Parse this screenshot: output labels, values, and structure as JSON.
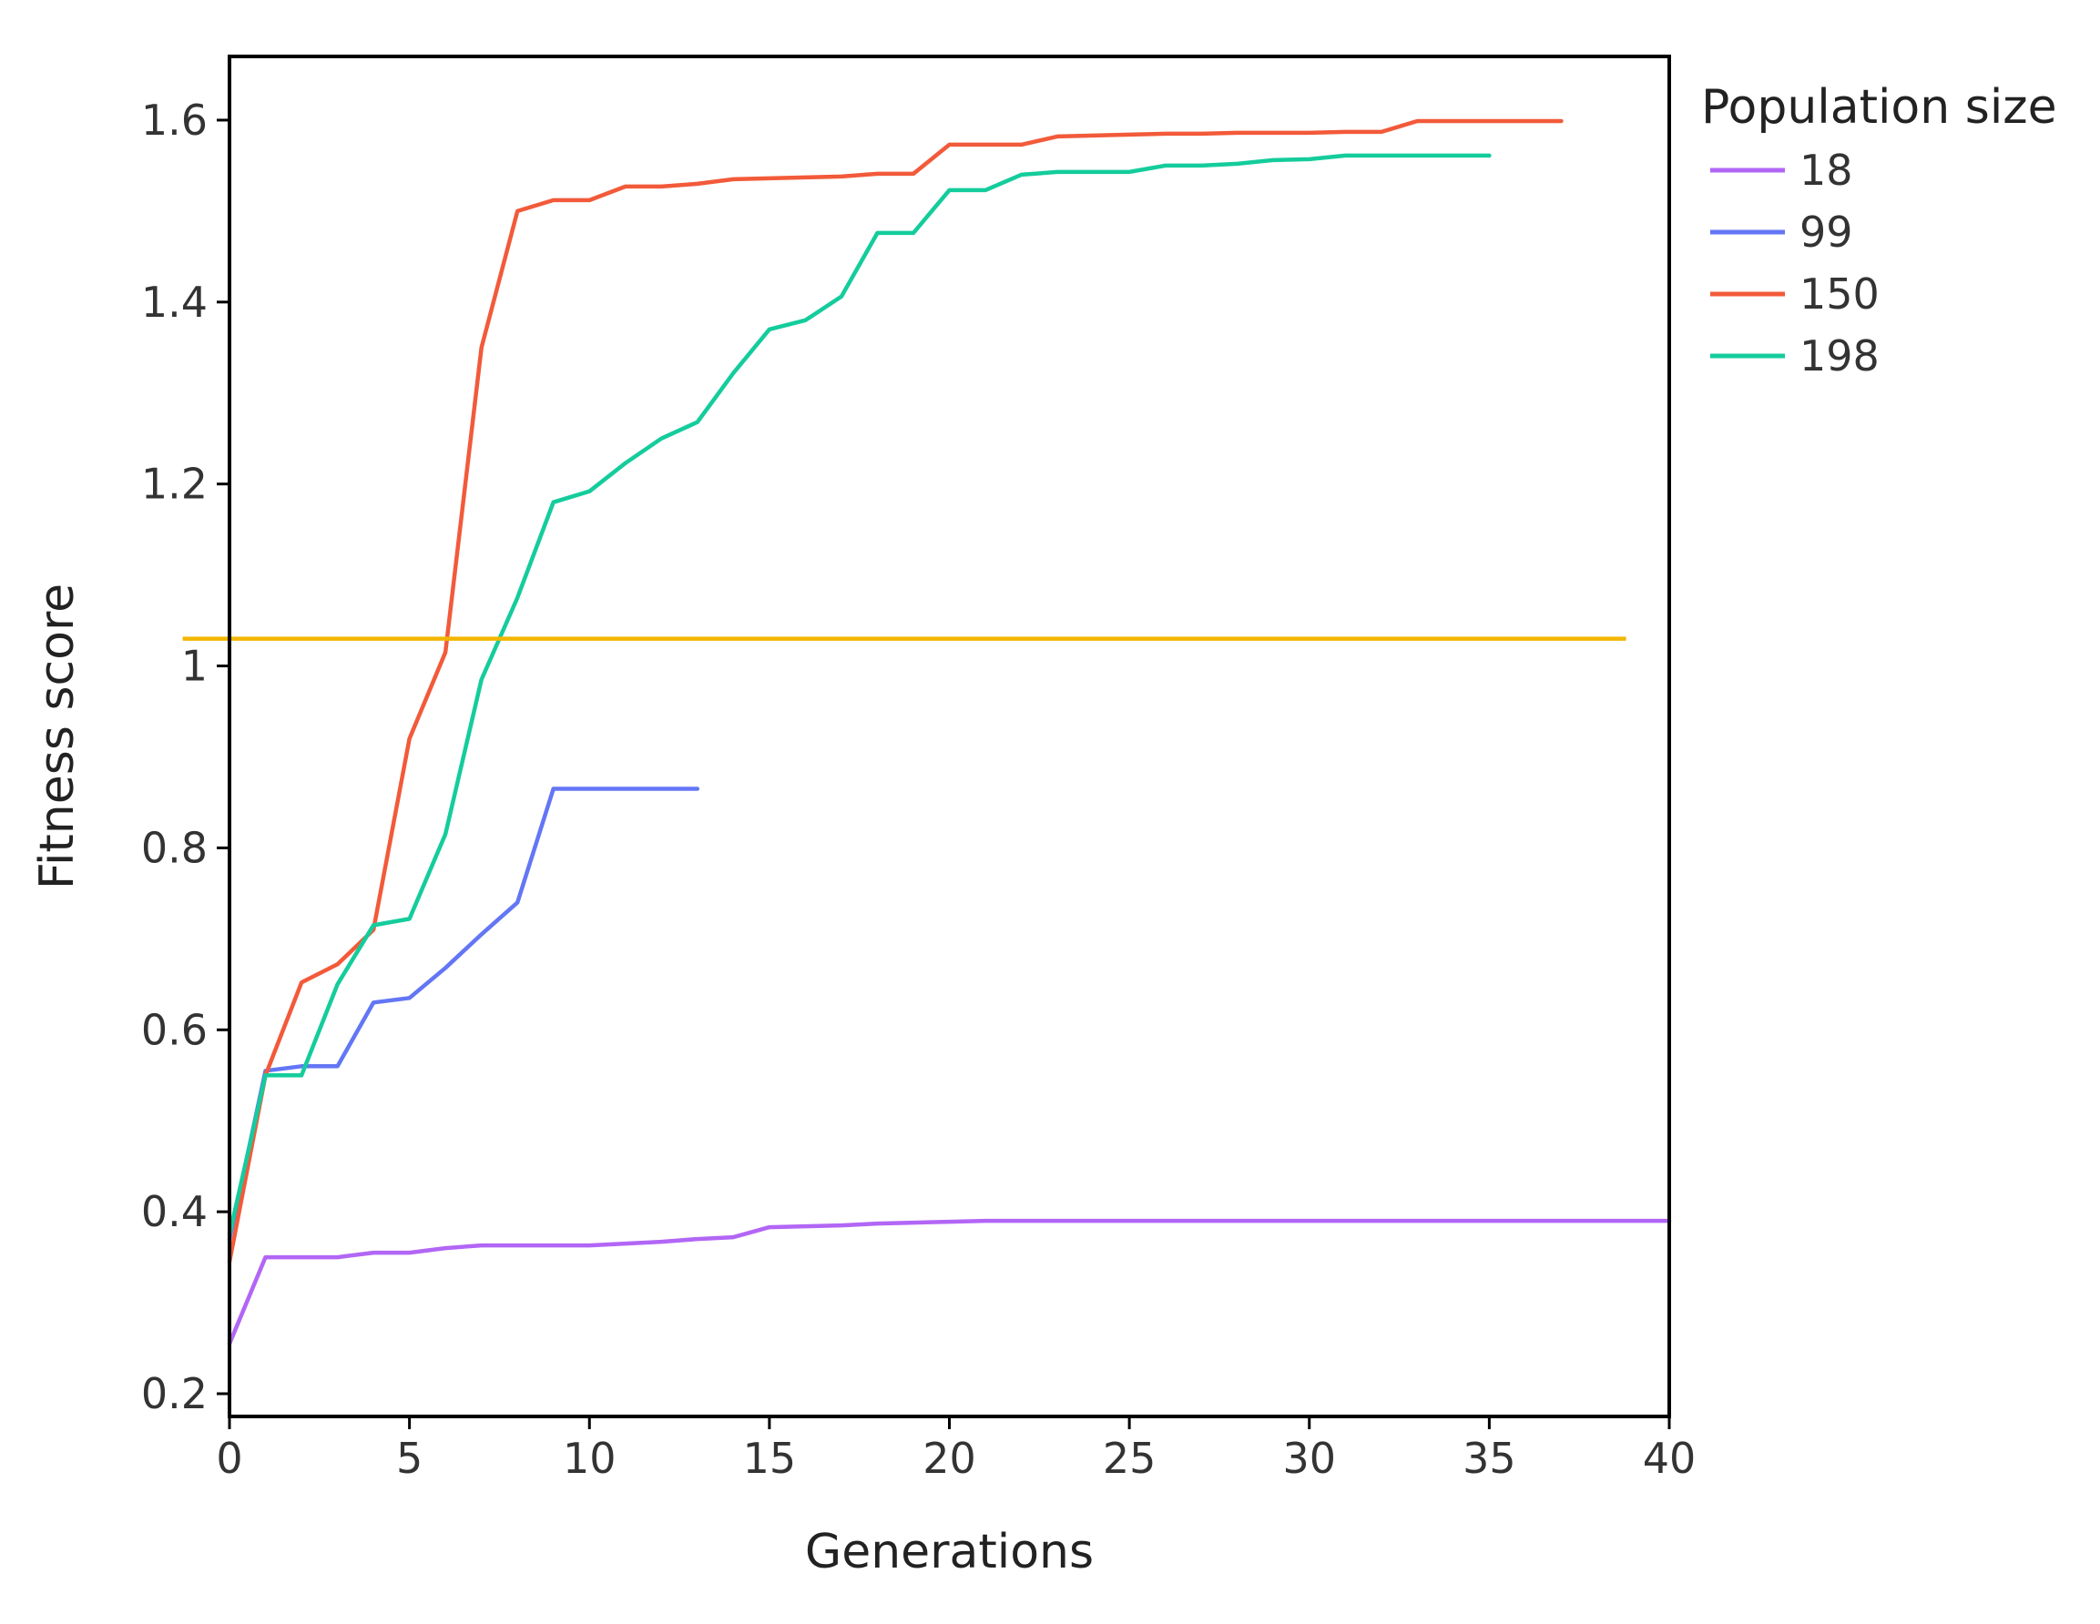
{
  "chart_data": {
    "type": "line",
    "title": "",
    "xlabel": "Generations",
    "ylabel": "Fitness score",
    "xlim": [
      0,
      40
    ],
    "ylim": [
      0.175,
      1.67
    ],
    "xticks": [
      0,
      5,
      10,
      15,
      20,
      25,
      30,
      35,
      40
    ],
    "yticks": [
      0.2,
      0.4,
      0.6,
      0.8,
      1,
      1.2,
      1.4,
      1.6
    ],
    "xtick_labels": [
      "0",
      "5",
      "10",
      "15",
      "20",
      "25",
      "30",
      "35",
      "40"
    ],
    "ytick_labels": [
      "0.2",
      "0.4",
      "0.6",
      "0.8",
      "1",
      "1.2",
      "1.4",
      "1.6"
    ],
    "grid": false,
    "legend": {
      "title": "Population size",
      "placement": "top-right-outside"
    },
    "reference_line": {
      "y": 1.03,
      "x_range": [
        -1.3,
        38.8
      ],
      "color": "#f2b600"
    },
    "series": [
      {
        "name": "18",
        "color": "#b266f5",
        "x": [
          0,
          1,
          2,
          3,
          4,
          5,
          6,
          7,
          8,
          9,
          10,
          11,
          12,
          13,
          14,
          15,
          16,
          17,
          18,
          19,
          20,
          21,
          22,
          23,
          24,
          25,
          26,
          27,
          28,
          29,
          30,
          31,
          32,
          33,
          34,
          35,
          36,
          37,
          38,
          39,
          40
        ],
        "values": [
          0.255,
          0.35,
          0.35,
          0.35,
          0.355,
          0.355,
          0.36,
          0.363,
          0.363,
          0.363,
          0.363,
          0.365,
          0.367,
          0.37,
          0.372,
          0.383,
          0.384,
          0.385,
          0.387,
          0.388,
          0.389,
          0.39,
          0.39,
          0.39,
          0.39,
          0.39,
          0.39,
          0.39,
          0.39,
          0.39,
          0.39,
          0.39,
          0.39,
          0.39,
          0.39,
          0.39,
          0.39,
          0.39,
          0.39,
          0.39,
          0.39
        ]
      },
      {
        "name": "99",
        "color": "#6376f5",
        "x": [
          0,
          1,
          2,
          3,
          4,
          5,
          6,
          7,
          8,
          9,
          10,
          11,
          12,
          13
        ],
        "values": [
          0.37,
          0.555,
          0.56,
          0.56,
          0.63,
          0.635,
          0.668,
          0.705,
          0.74,
          0.865,
          0.865,
          0.865,
          0.865,
          0.865
        ]
      },
      {
        "name": "150",
        "color": "#f25a3a",
        "x": [
          0,
          1,
          2,
          3,
          4,
          5,
          6,
          7,
          8,
          9,
          10,
          11,
          12,
          13,
          14,
          15,
          16,
          17,
          18,
          19,
          20,
          21,
          22,
          23,
          24,
          25,
          26,
          27,
          28,
          29,
          30,
          31,
          32,
          33,
          34,
          35,
          36,
          37
        ],
        "values": [
          0.345,
          0.55,
          0.652,
          0.672,
          0.71,
          0.92,
          1.015,
          1.35,
          1.5,
          1.512,
          1.512,
          1.527,
          1.527,
          1.53,
          1.535,
          1.536,
          1.537,
          1.538,
          1.541,
          1.541,
          1.573,
          1.573,
          1.573,
          1.582,
          1.583,
          1.584,
          1.585,
          1.585,
          1.586,
          1.586,
          1.586,
          1.587,
          1.587,
          1.599,
          1.599,
          1.599,
          1.599,
          1.599
        ]
      },
      {
        "name": "198",
        "color": "#14cc9c",
        "x": [
          0,
          1,
          2,
          3,
          4,
          5,
          6,
          7,
          8,
          9,
          10,
          11,
          12,
          13,
          14,
          15,
          16,
          17,
          18,
          19,
          20,
          21,
          22,
          23,
          24,
          25,
          26,
          27,
          28,
          29,
          30,
          31,
          32,
          33,
          34,
          35
        ],
        "values": [
          0.375,
          0.55,
          0.55,
          0.65,
          0.715,
          0.722,
          0.815,
          0.985,
          1.075,
          1.18,
          1.192,
          1.223,
          1.25,
          1.268,
          1.322,
          1.37,
          1.38,
          1.406,
          1.476,
          1.476,
          1.523,
          1.523,
          1.54,
          1.543,
          1.543,
          1.543,
          1.55,
          1.55,
          1.552,
          1.556,
          1.557,
          1.561,
          1.561,
          1.561,
          1.561,
          1.561
        ]
      }
    ]
  }
}
